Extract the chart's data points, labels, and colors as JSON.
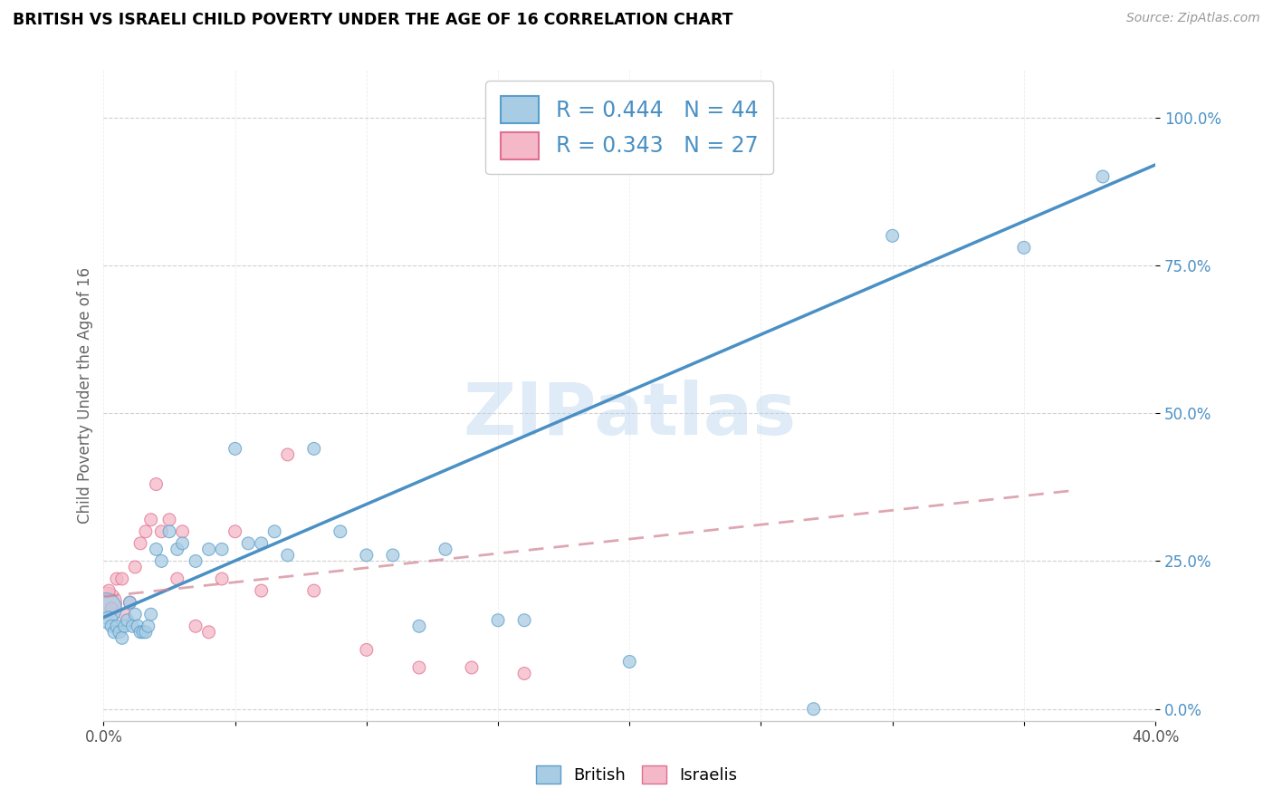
{
  "title": "BRITISH VS ISRAELI CHILD POVERTY UNDER THE AGE OF 16 CORRELATION CHART",
  "source": "Source: ZipAtlas.com",
  "ylabel": "Child Poverty Under the Age of 16",
  "xlim": [
    0.0,
    0.4
  ],
  "ylim": [
    -0.02,
    1.08
  ],
  "ytick_labels": [
    "0.0%",
    "25.0%",
    "50.0%",
    "75.0%",
    "100.0%"
  ],
  "ytick_values": [
    0.0,
    0.25,
    0.5,
    0.75,
    1.0
  ],
  "british_color": "#a8cce4",
  "israeli_color": "#f4b8c8",
  "british_edge_color": "#5a9ec9",
  "israeli_edge_color": "#e07090",
  "british_line_color": "#4a90c4",
  "israeli_line_color": "#d08090",
  "R_british": 0.444,
  "N_british": 44,
  "R_israeli": 0.343,
  "N_israeli": 27,
  "watermark": "ZIPatlas",
  "british_x": [
    0.001,
    0.002,
    0.003,
    0.004,
    0.005,
    0.006,
    0.007,
    0.008,
    0.009,
    0.01,
    0.011,
    0.012,
    0.013,
    0.014,
    0.015,
    0.016,
    0.017,
    0.018,
    0.02,
    0.022,
    0.025,
    0.028,
    0.03,
    0.035,
    0.04,
    0.045,
    0.05,
    0.055,
    0.06,
    0.065,
    0.07,
    0.08,
    0.09,
    0.1,
    0.11,
    0.12,
    0.13,
    0.15,
    0.16,
    0.2,
    0.27,
    0.3,
    0.35,
    0.38
  ],
  "british_y": [
    0.17,
    0.15,
    0.14,
    0.13,
    0.14,
    0.13,
    0.12,
    0.14,
    0.15,
    0.18,
    0.14,
    0.16,
    0.14,
    0.13,
    0.13,
    0.13,
    0.14,
    0.16,
    0.27,
    0.25,
    0.3,
    0.27,
    0.28,
    0.25,
    0.27,
    0.27,
    0.44,
    0.28,
    0.28,
    0.3,
    0.26,
    0.44,
    0.3,
    0.26,
    0.26,
    0.14,
    0.27,
    0.15,
    0.15,
    0.08,
    0.0,
    0.8,
    0.78,
    0.9
  ],
  "british_sizes": [
    600,
    200,
    100,
    100,
    100,
    100,
    100,
    100,
    100,
    100,
    100,
    100,
    100,
    100,
    100,
    100,
    100,
    100,
    100,
    100,
    100,
    100,
    100,
    100,
    100,
    100,
    100,
    100,
    100,
    100,
    100,
    100,
    100,
    100,
    100,
    100,
    100,
    100,
    100,
    100,
    100,
    100,
    100,
    100
  ],
  "israeli_x": [
    0.001,
    0.002,
    0.003,
    0.005,
    0.007,
    0.008,
    0.01,
    0.012,
    0.014,
    0.016,
    0.018,
    0.02,
    0.022,
    0.025,
    0.028,
    0.03,
    0.035,
    0.04,
    0.045,
    0.05,
    0.06,
    0.07,
    0.08,
    0.1,
    0.12,
    0.14,
    0.16
  ],
  "israeli_y": [
    0.18,
    0.2,
    0.17,
    0.22,
    0.22,
    0.16,
    0.18,
    0.24,
    0.28,
    0.3,
    0.32,
    0.38,
    0.3,
    0.32,
    0.22,
    0.3,
    0.14,
    0.13,
    0.22,
    0.3,
    0.2,
    0.43,
    0.2,
    0.1,
    0.07,
    0.07,
    0.06
  ],
  "israeli_sizes": [
    600,
    100,
    100,
    100,
    100,
    100,
    100,
    100,
    100,
    100,
    100,
    100,
    100,
    100,
    100,
    100,
    100,
    100,
    100,
    100,
    100,
    100,
    100,
    100,
    100,
    100,
    100
  ],
  "british_line_x": [
    0.0,
    0.4
  ],
  "british_line_y": [
    0.155,
    0.92
  ],
  "israeli_line_x": [
    0.0,
    0.37
  ],
  "israeli_line_y": [
    0.19,
    0.37
  ]
}
